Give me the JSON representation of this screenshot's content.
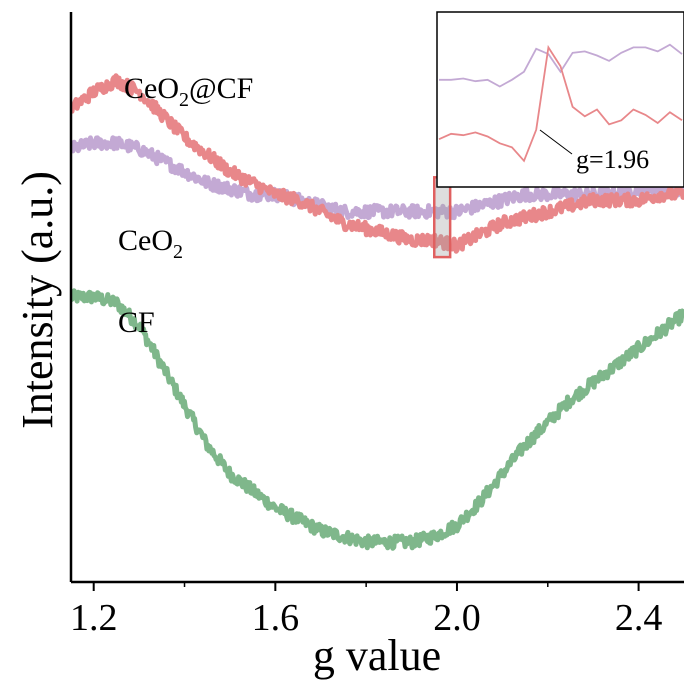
{
  "chart_data": {
    "type": "line",
    "xlabel": "g value",
    "ylabel": "Intensity (a.u.)",
    "xlim": [
      1.15,
      2.5
    ],
    "ylim": [
      0,
      1
    ],
    "x_ticks": [
      "1.2",
      "1.6",
      "2.0",
      "2.4"
    ],
    "x_tick_values": [
      1.2,
      1.6,
      2.0,
      2.4
    ],
    "grid": false,
    "series": [
      {
        "name": "CeO2@CF",
        "label_main": "CeO",
        "label_sub": "2",
        "label_tail": "@CF",
        "color": "#e8878a",
        "x": [
          1.15,
          1.2,
          1.25,
          1.3,
          1.35,
          1.4,
          1.45,
          1.5,
          1.55,
          1.6,
          1.65,
          1.7,
          1.75,
          1.8,
          1.85,
          1.9,
          1.95,
          2.0,
          2.05,
          2.1,
          2.15,
          2.2,
          2.25,
          2.3,
          2.35,
          2.4,
          2.45,
          2.5
        ],
        "y": [
          0.83,
          0.86,
          0.88,
          0.86,
          0.82,
          0.78,
          0.75,
          0.72,
          0.7,
          0.68,
          0.67,
          0.65,
          0.63,
          0.62,
          0.61,
          0.6,
          0.6,
          0.59,
          0.61,
          0.63,
          0.64,
          0.65,
          0.66,
          0.67,
          0.67,
          0.67,
          0.68,
          0.68
        ]
      },
      {
        "name": "CeO2",
        "label_main": "CeO",
        "label_sub": "2",
        "label_tail": "",
        "color": "#c3a9d4",
        "x": [
          1.15,
          1.2,
          1.25,
          1.3,
          1.35,
          1.4,
          1.45,
          1.5,
          1.55,
          1.6,
          1.65,
          1.7,
          1.75,
          1.8,
          1.85,
          1.9,
          1.95,
          2.0,
          2.05,
          2.1,
          2.15,
          2.2,
          2.25,
          2.3,
          2.35,
          2.4,
          2.45,
          2.5
        ],
        "y": [
          0.76,
          0.77,
          0.77,
          0.76,
          0.74,
          0.72,
          0.7,
          0.69,
          0.68,
          0.68,
          0.67,
          0.66,
          0.65,
          0.65,
          0.65,
          0.65,
          0.65,
          0.65,
          0.66,
          0.67,
          0.68,
          0.68,
          0.68,
          0.68,
          0.68,
          0.69,
          0.69,
          0.69
        ]
      },
      {
        "name": "CF",
        "label_main": "CF",
        "label_sub": "",
        "label_tail": "",
        "color": "#7fb78b",
        "x": [
          1.15,
          1.2,
          1.25,
          1.3,
          1.35,
          1.4,
          1.45,
          1.5,
          1.55,
          1.6,
          1.65,
          1.7,
          1.75,
          1.8,
          1.85,
          1.9,
          1.95,
          2.0,
          2.05,
          2.1,
          2.15,
          2.2,
          2.25,
          2.3,
          2.35,
          2.4,
          2.45,
          2.5
        ],
        "y": [
          0.5,
          0.5,
          0.49,
          0.45,
          0.38,
          0.31,
          0.24,
          0.19,
          0.16,
          0.13,
          0.11,
          0.09,
          0.08,
          0.07,
          0.07,
          0.07,
          0.08,
          0.1,
          0.14,
          0.19,
          0.24,
          0.28,
          0.32,
          0.35,
          0.38,
          0.41,
          0.44,
          0.47
        ]
      }
    ],
    "highlight": {
      "x_range": [
        1.95,
        1.985
      ],
      "y_range": [
        0.57,
        0.71
      ],
      "color": "#e06060"
    },
    "inset": {
      "annotation": "g=1.96",
      "series": [
        {
          "color": "#c3a9d4",
          "y": [
            0.72,
            0.72,
            0.73,
            0.71,
            0.72,
            0.67,
            0.72,
            0.78,
            0.95,
            0.91,
            0.78,
            0.92,
            0.93,
            0.9,
            0.86,
            0.92,
            0.96,
            0.96,
            0.93,
            0.98,
            0.91
          ]
        },
        {
          "color": "#e8878a",
          "y": [
            0.28,
            0.32,
            0.31,
            0.33,
            0.3,
            0.25,
            0.22,
            0.12,
            0.35,
            0.96,
            0.82,
            0.52,
            0.45,
            0.5,
            0.39,
            0.42,
            0.5,
            0.46,
            0.4,
            0.48,
            0.42
          ]
        }
      ]
    }
  }
}
